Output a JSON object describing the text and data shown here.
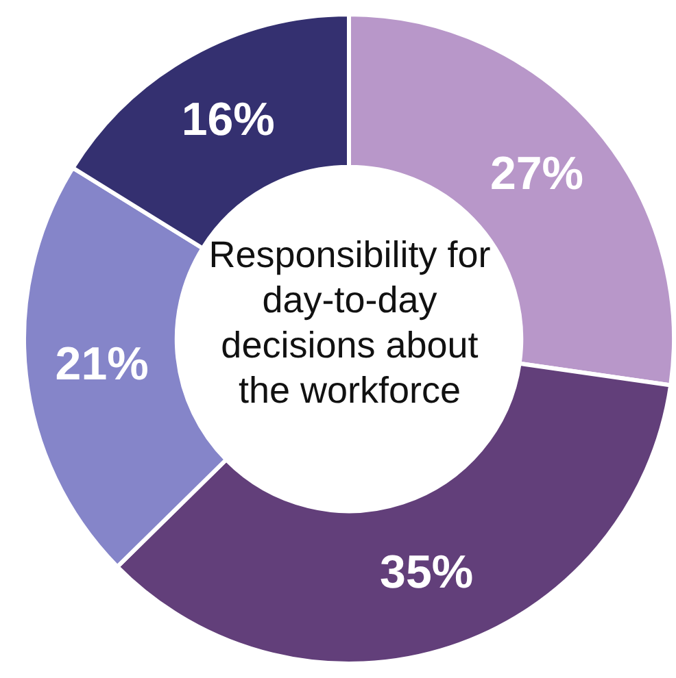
{
  "chart_data": {
    "type": "donut",
    "title": "Responsibility for day-to-day decisions about the workforce",
    "categories": [
      null,
      null,
      null,
      null
    ],
    "values": [
      27,
      35,
      21,
      16
    ],
    "colors": [
      "#b897c9",
      "#623f7a",
      "#8585c9",
      "#343070"
    ],
    "value_labels": [
      "27%",
      "35%",
      "21%",
      "16%"
    ],
    "legend": false
  }
}
